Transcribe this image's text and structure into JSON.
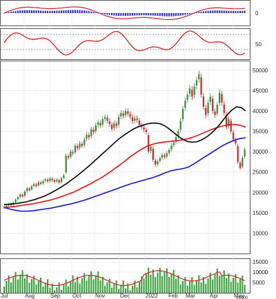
{
  "chart_data": {
    "type": "multi-panel stock chart",
    "colors": {
      "price_up": "#2e8b2e",
      "price_down": "#d62020",
      "ma_fast": "#000000",
      "ma_mid": "#e01010",
      "ma_slow": "#1010cc",
      "rsi": "#d62020",
      "macd_hist_pos": "#2222cc",
      "macd_hist_neg": "#2222cc",
      "macd_line": "#d62020",
      "volume": "#2e9e2e",
      "volume_ma": "#d62020",
      "grid": "#cfcfcf"
    },
    "x_axis": {
      "tick_labels": [
        "Jul",
        "Aug",
        "Sep",
        "Oct",
        "Nov",
        "Dec",
        "2022",
        "Feb",
        "Mar",
        "Apr",
        "May"
      ]
    },
    "macd_panel": {
      "tick_labels": [
        "0"
      ]
    },
    "rsi_panel": {
      "tick_labels": [
        "50"
      ]
    },
    "price_panel": {
      "ylim": [
        5000,
        52000
      ],
      "tick_labels": [
        "50000",
        "45000",
        "40000",
        "35000",
        "30000",
        "25000",
        "20000",
        "15000",
        "10000"
      ],
      "ticks": [
        50000,
        45000,
        40000,
        35000,
        30000,
        25000,
        20000,
        15000,
        10000
      ],
      "candle_closes": [
        16500,
        16800,
        17200,
        16900,
        17500,
        18200,
        18800,
        19500,
        19000,
        20200,
        21000,
        20600,
        21500,
        22000,
        21600,
        22500,
        22100,
        22800,
        23200,
        22700,
        23400,
        23000,
        22600,
        23100,
        22400,
        23500,
        24200,
        29000,
        28500,
        30000,
        29600,
        31500,
        30800,
        32000,
        31400,
        33000,
        34200,
        33500,
        35500,
        34800,
        36500,
        37200,
        36400,
        38000,
        38500,
        37600,
        36800,
        35600,
        37000,
        36300,
        38500,
        39500,
        38800,
        40000,
        39300,
        38600,
        37500,
        38200,
        37800,
        36600,
        36000,
        35400,
        34800,
        30000,
        31200,
        28000,
        26800,
        27600,
        28400,
        29200,
        28700,
        29600,
        30400,
        31500,
        32200,
        33600,
        35000,
        37500,
        40500,
        42500,
        44000,
        45500,
        43500,
        46000,
        47500,
        49000,
        44000,
        41000,
        39000,
        42000,
        43500,
        40000,
        39000,
        41500,
        44500,
        42000,
        39500,
        36000,
        38000,
        35000,
        33000,
        32000,
        27500,
        26000,
        28500,
        30500
      ],
      "ma_fast": [
        17000,
        17100,
        17200,
        17300,
        17500,
        17700,
        18000,
        18300,
        18700,
        19100,
        19600,
        20200,
        20800,
        21500,
        22200,
        23000,
        23800,
        24700,
        25600,
        26500,
        27500,
        28500,
        29500,
        30500,
        31500,
        32500,
        33400,
        34200,
        34900,
        35600,
        36100,
        36500,
        36800,
        37000,
        37000,
        36800,
        36300,
        35500,
        34600,
        33700,
        33000,
        32500,
        32300,
        32400,
        32800,
        33400,
        34200,
        35200,
        36400,
        37800,
        39200,
        40300,
        41000,
        40800,
        40000
      ],
      "ma_mid": [
        16300,
        16400,
        16600,
        16800,
        17000,
        17200,
        17500,
        17800,
        18100,
        18500,
        19000,
        19500,
        20000,
        20700,
        21400,
        22100,
        22900,
        23700,
        24600,
        25600,
        26600,
        27700,
        28800,
        29800,
        30700,
        31400,
        31900,
        32200,
        32400,
        32500,
        32700,
        32900,
        33200,
        33600,
        34200,
        34800,
        35400,
        35900,
        36300,
        36600,
        36700,
        36500,
        36000
      ],
      "ma_slow": [
        16300,
        15900,
        15600,
        15400,
        15400,
        15500,
        15700,
        15900,
        16100,
        16400,
        16700,
        17000,
        17300,
        17700,
        18100,
        18600,
        19100,
        19600,
        20100,
        20600,
        21100,
        21600,
        22100,
        22500,
        22900,
        23300,
        23700,
        24200,
        24800,
        25300,
        25600,
        25800,
        26200,
        27000,
        27900,
        28800,
        29700,
        30600,
        31500,
        32200,
        32800,
        33200,
        33400
      ]
    },
    "volume_panel": {
      "tick_labels": [
        "15000",
        "10000",
        "5000"
      ],
      "unit_label": "x1000",
      "ticks": [
        15000,
        10000,
        5000
      ],
      "ylim": [
        0,
        16000
      ]
    }
  }
}
